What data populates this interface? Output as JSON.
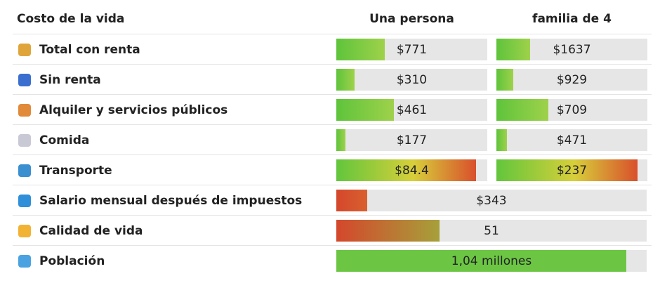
{
  "header": {
    "title": "Costo de la vida",
    "columns": [
      "Una persona",
      "familia de 4"
    ]
  },
  "rows": [
    {
      "label": "Total con renta",
      "values": [
        "$771",
        "$1637"
      ]
    },
    {
      "label": "Sin renta",
      "values": [
        "$310",
        "$929"
      ]
    },
    {
      "label": "Alquiler y servicios públicos",
      "values": [
        "$461",
        "$709"
      ]
    },
    {
      "label": "Comida",
      "values": [
        "$177",
        "$471"
      ]
    },
    {
      "label": "Transporte",
      "values": [
        "$84.4",
        "$237"
      ]
    },
    {
      "label": "Salario mensual después de impuestos",
      "values": [
        "$343"
      ]
    },
    {
      "label": "Calidad de vida",
      "values": [
        "51"
      ]
    },
    {
      "label": "Población",
      "values": [
        "1,04 millones"
      ]
    }
  ]
}
